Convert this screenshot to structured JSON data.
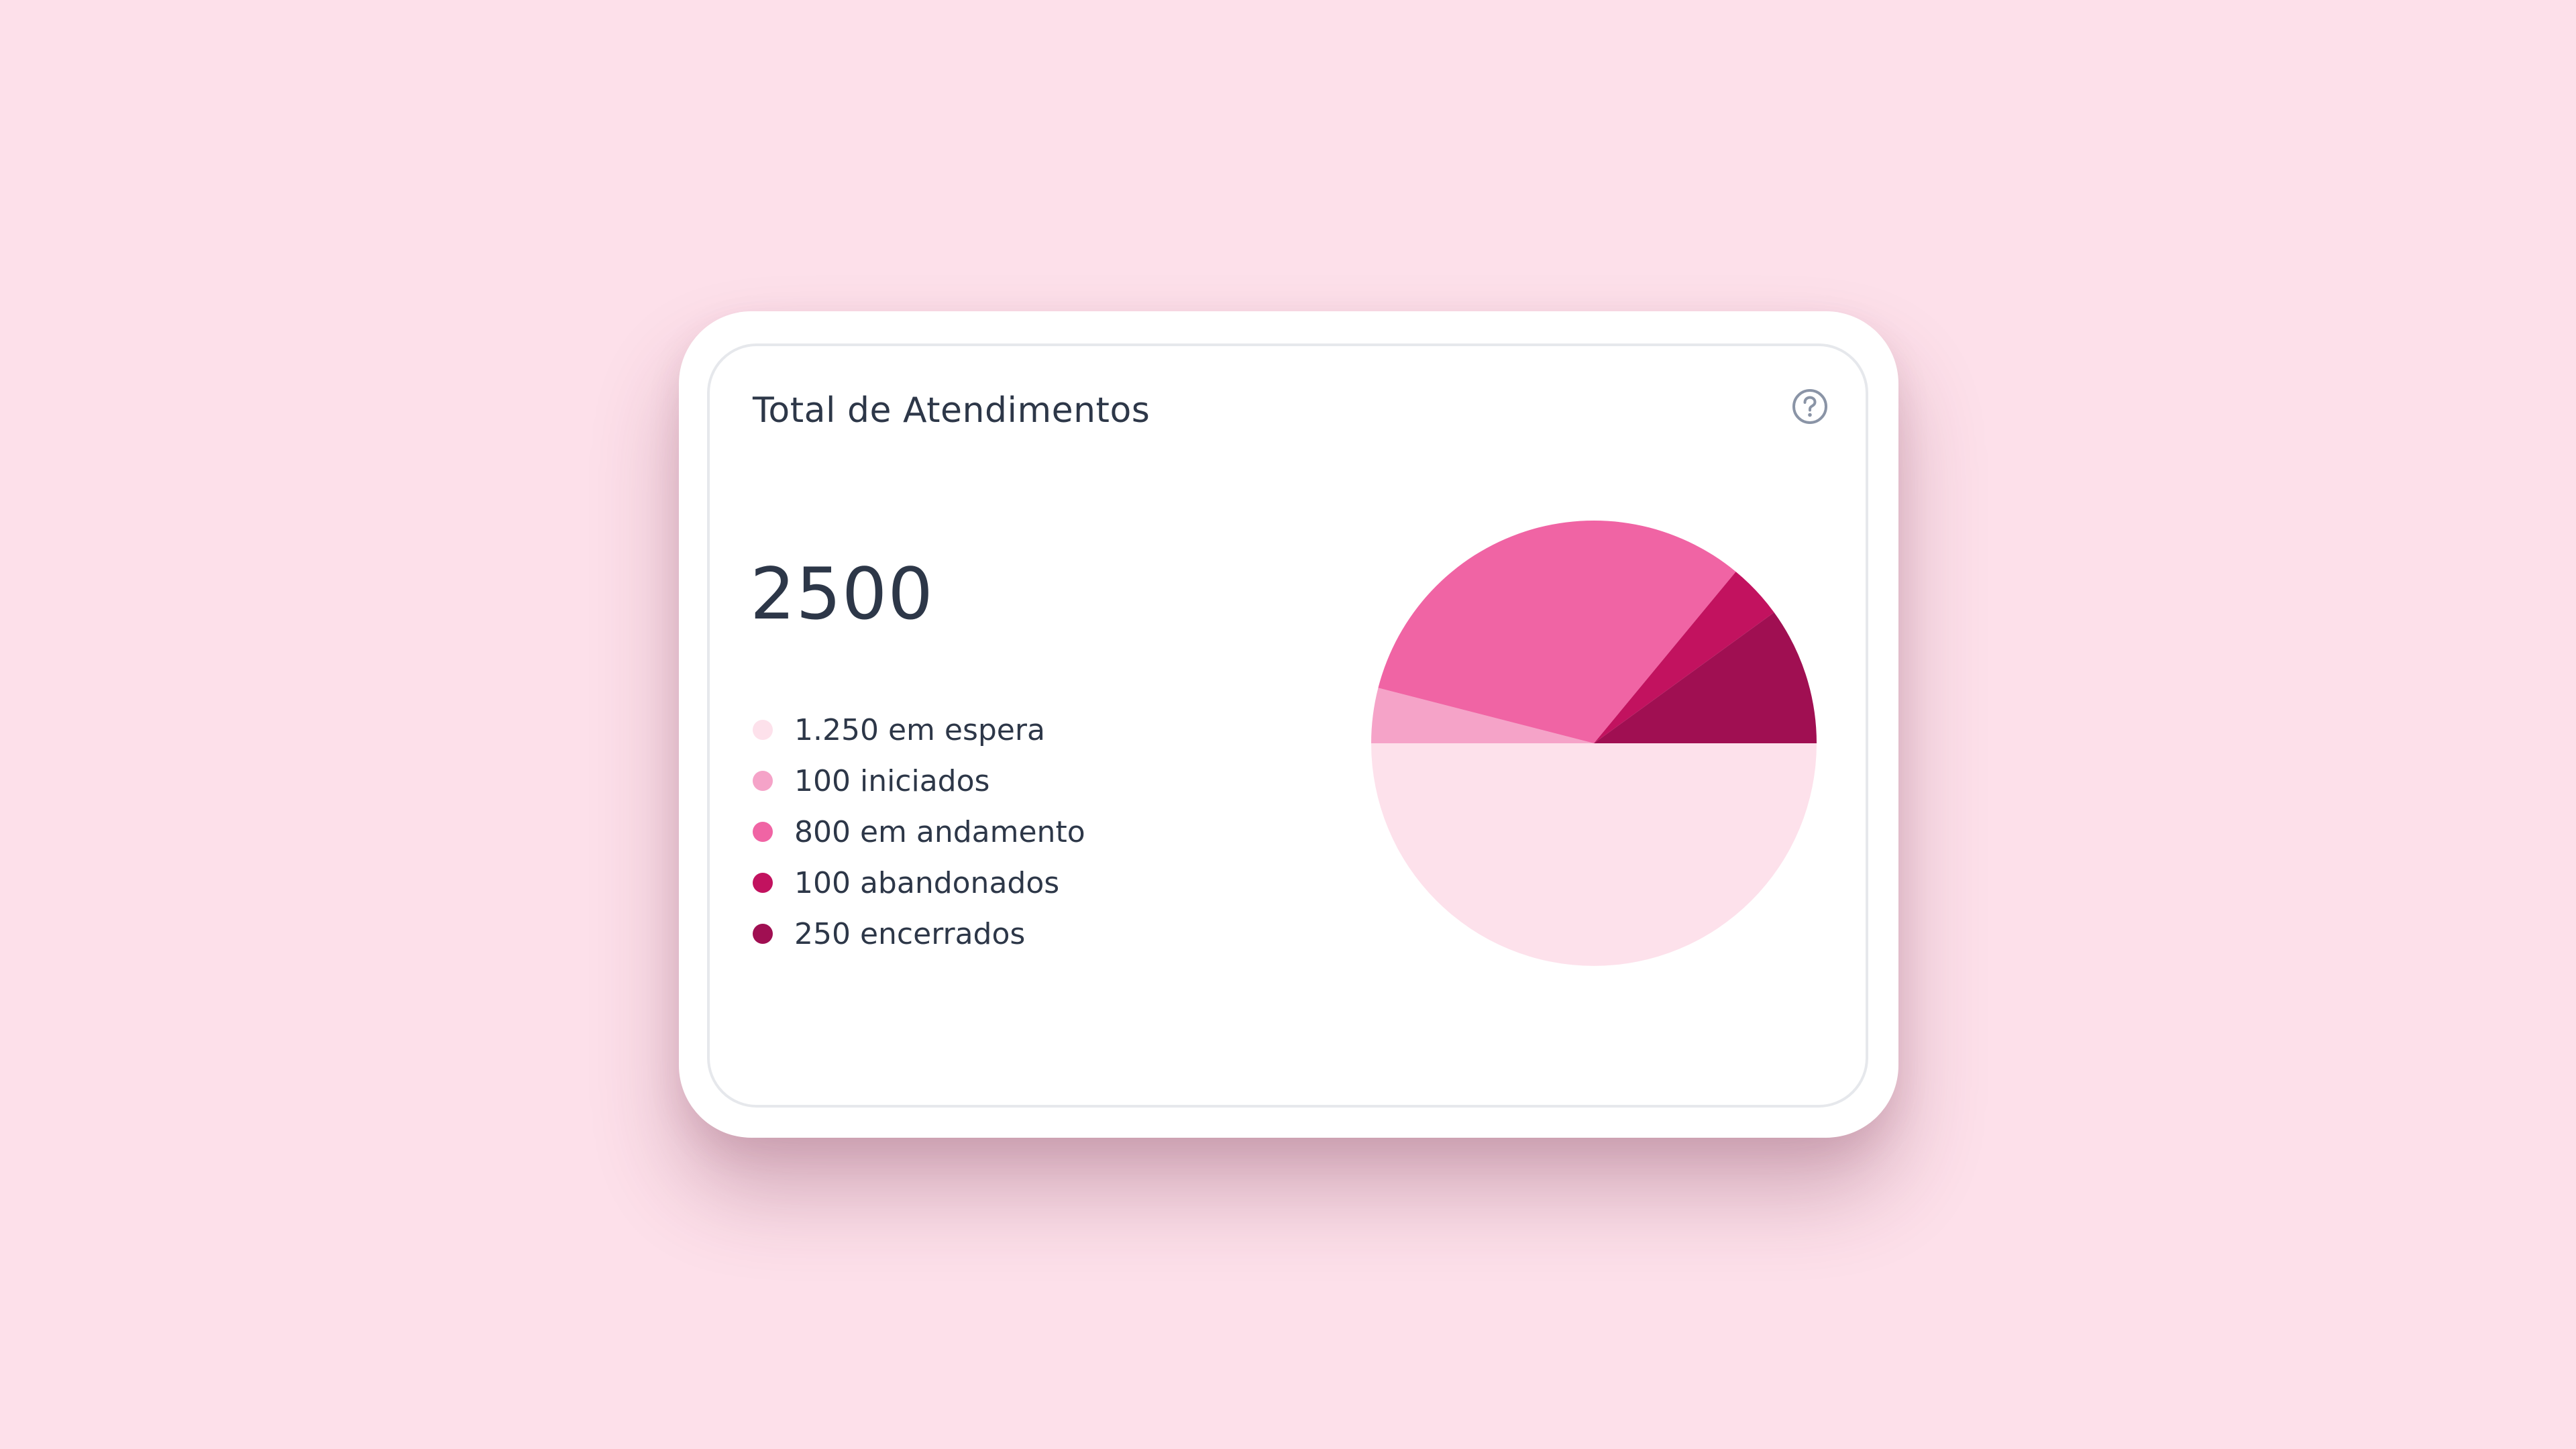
{
  "card": {
    "title": "Total de Atendimentos",
    "help_icon": "help-circle-icon",
    "total": "2500"
  },
  "colors": {
    "background": "#fde0ea",
    "text": "#2d3748"
  },
  "legend": [
    {
      "label": "1.250 em espera",
      "color": "#fde1eb"
    },
    {
      "label": "100 iniciados",
      "color": "#f5a3c8"
    },
    {
      "label": "800 em andamento",
      "color": "#f064a4"
    },
    {
      "label": "100 abandonados",
      "color": "#c2125f"
    },
    {
      "label": "250 encerrados",
      "color": "#a00f52"
    }
  ],
  "chart_data": {
    "type": "pie",
    "title": "Total de Atendimentos",
    "total": 2500,
    "slices": [
      {
        "label": "1.250 em espera",
        "value": 1250,
        "color": "#fde1eb"
      },
      {
        "label": "100 iniciados",
        "value": 100,
        "color": "#f5a3c8"
      },
      {
        "label": "800 em andamento",
        "value": 800,
        "color": "#f064a4"
      },
      {
        "label": "100 abandonados",
        "value": 100,
        "color": "#c2125f"
      },
      {
        "label": "250 encerrados",
        "value": 250,
        "color": "#a00f52"
      }
    ],
    "legend_position": "left"
  }
}
